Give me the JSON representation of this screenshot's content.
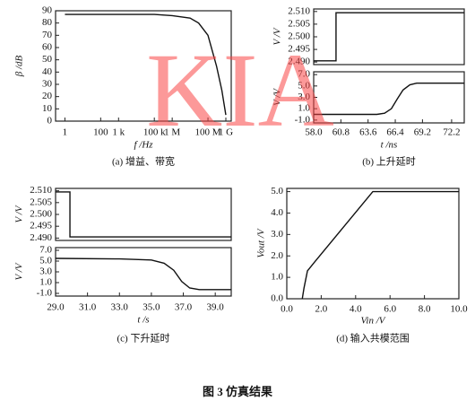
{
  "watermark": "KIA",
  "figure_caption": "图 3    仿真结果",
  "chart_data": [
    {
      "type": "line",
      "caption": "(a) 增益、带宽",
      "xlabel": "f /Hz",
      "ylabel": "β /dB",
      "xscale": "log",
      "color": "#111111",
      "x": [
        1,
        100000,
        1000000,
        10000000,
        30000000,
        100000000,
        300000000,
        600000000,
        1000000000
      ],
      "values": [
        87,
        87,
        86,
        84,
        80,
        70,
        45,
        25,
        5
      ],
      "xlim": [
        0.3,
        2000000000
      ],
      "xticks": [
        {
          "value": 1,
          "label": "1"
        },
        {
          "value": 100,
          "label": "100"
        },
        {
          "value": 1000,
          "label": "1 k"
        },
        {
          "value": 100000,
          "label": "100 k"
        },
        {
          "value": 1000000,
          "label": "1 M"
        },
        {
          "value": 100000000,
          "label": "100 M"
        },
        {
          "value": 1000000000,
          "label": "1 G"
        }
      ],
      "ylim": [
        0,
        90
      ],
      "yticks": [
        0,
        10,
        20,
        30,
        40,
        50,
        60,
        70,
        80,
        90
      ]
    },
    {
      "type": "line",
      "ylabel": "V /V",
      "color": "#111111",
      "x": [
        58.0,
        60.3,
        60.3,
        73.5
      ],
      "values": [
        2.4905,
        2.4905,
        2.5095,
        2.5095
      ],
      "xlim": [
        58.0,
        73.5
      ],
      "ylim": [
        2.489,
        2.511
      ],
      "yticks": [
        {
          "value": 2.49,
          "label": "2.490"
        },
        2.495,
        {
          "value": 2.5,
          "label": "2.500"
        },
        2.505,
        {
          "value": 2.51,
          "label": "2.510"
        }
      ]
    },
    {
      "type": "line",
      "caption": "(b) 上升延时",
      "xlabel": "t /ns",
      "ylabel": "V /V",
      "color": "#111111",
      "x": [
        58.0,
        64.5,
        65.3,
        66.0,
        66.6,
        67.2,
        67.9,
        68.6,
        73.5
      ],
      "values": [
        0.0,
        0.0,
        0.2,
        1.0,
        2.7,
        4.3,
        5.2,
        5.5,
        5.5
      ],
      "xlim": [
        58.0,
        73.5
      ],
      "ylim": [
        -1.5,
        7.5
      ],
      "xticks": [
        {
          "value": 58,
          "label": "58.0"
        },
        {
          "value": 60.8,
          "label": "60.8"
        },
        {
          "value": 63.6,
          "label": "63.6"
        },
        {
          "value": 66.4,
          "label": "66.4"
        },
        {
          "value": 69.2,
          "label": "69.2"
        },
        {
          "value": 72.2,
          "label": "72.2"
        }
      ],
      "yticks": [
        {
          "value": -1,
          "label": "-1.0"
        },
        {
          "value": 1,
          "label": "1.0"
        },
        {
          "value": 3,
          "label": "3.0"
        },
        {
          "value": 5,
          "label": "5.0"
        },
        {
          "value": 7,
          "label": "7.0"
        }
      ]
    },
    {
      "type": "line",
      "ylabel": "V /V",
      "color": "#111111",
      "x": [
        29.0,
        29.9,
        29.9,
        40.0
      ],
      "values": [
        2.5095,
        2.5095,
        2.4905,
        2.4905
      ],
      "xlim": [
        29.0,
        40.0
      ],
      "ylim": [
        2.489,
        2.511
      ],
      "yticks": [
        {
          "value": 2.49,
          "label": "2.490"
        },
        2.495,
        {
          "value": 2.5,
          "label": "2.500"
        },
        2.505,
        {
          "value": 2.51,
          "label": "2.510"
        }
      ]
    },
    {
      "type": "line",
      "caption": "(c) 下升延时",
      "xlabel": "t /s",
      "ylabel": "V /V",
      "color": "#111111",
      "x": [
        29.0,
        33.0,
        35.0,
        35.8,
        36.4,
        36.9,
        37.4,
        38.0,
        40.0
      ],
      "values": [
        5.5,
        5.4,
        5.2,
        4.6,
        3.3,
        1.2,
        0.0,
        -0.3,
        -0.3
      ],
      "xlim": [
        29.0,
        40.0
      ],
      "ylim": [
        -1.5,
        7.5
      ],
      "xticks": [
        {
          "value": 29,
          "label": "29.0"
        },
        {
          "value": 31,
          "label": "31.0"
        },
        {
          "value": 33,
          "label": "33.0"
        },
        {
          "value": 35,
          "label": "35.0"
        },
        {
          "value": 37,
          "label": "37.0"
        },
        {
          "value": 39,
          "label": "39.0"
        }
      ],
      "yticks": [
        {
          "value": -1,
          "label": "-1.0"
        },
        {
          "value": 1,
          "label": "1.0"
        },
        {
          "value": 3,
          "label": "3.0"
        },
        {
          "value": 5,
          "label": "5.0"
        },
        {
          "value": 7,
          "label": "7.0"
        }
      ]
    },
    {
      "type": "line",
      "caption": "(d) 输入共模范围",
      "xlabel": "Vin /V",
      "ylabel": "Vout /V",
      "color": "#111111",
      "x": [
        0.9,
        1.0,
        1.2,
        1.6,
        5.0,
        10.0
      ],
      "values": [
        0.0,
        0.5,
        1.3,
        1.7,
        5.0,
        5.0
      ],
      "xlim": [
        0,
        10
      ],
      "ylim": [
        0,
        5.15
      ],
      "xticks": [
        {
          "value": 0,
          "label": "0.0"
        },
        {
          "value": 2,
          "label": "2.0"
        },
        {
          "value": 4,
          "label": "4.0"
        },
        {
          "value": 6,
          "label": "6.0"
        },
        {
          "value": 8,
          "label": "8.0"
        },
        {
          "value": 10,
          "label": "10.0"
        }
      ],
      "yticks": [
        {
          "value": 0,
          "label": "0.0"
        },
        {
          "value": 1,
          "label": "1.0"
        },
        {
          "value": 2,
          "label": "2.0"
        },
        {
          "value": 3,
          "label": "3.0"
        },
        {
          "value": 4,
          "label": "4.0"
        },
        {
          "value": 5,
          "label": "5.0"
        }
      ]
    }
  ]
}
